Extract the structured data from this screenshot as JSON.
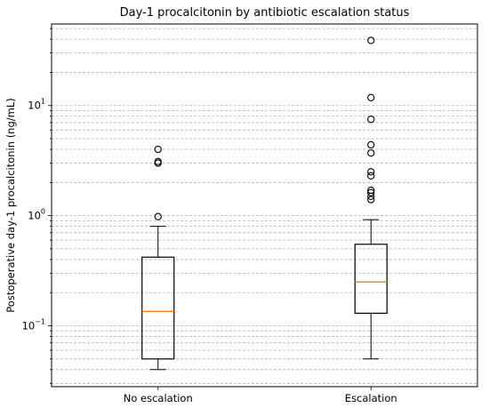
{
  "chart_data": {
    "type": "box",
    "title": "Day-1 procalcitonin by antibiotic escalation status",
    "xlabel": "",
    "ylabel": "Postoperative day-1 procalcitonin (ng/mL)",
    "yscale": "log",
    "ylim": [
      0.028,
      55
    ],
    "grid": "y-major-and-minor-dashed",
    "categories": [
      "No escalation",
      "Escalation"
    ],
    "y_ticks": [
      {
        "base": "10",
        "exp": "−1",
        "value": 0.1
      },
      {
        "base": "10",
        "exp": "0",
        "value": 1
      },
      {
        "base": "10",
        "exp": "1",
        "value": 10
      }
    ],
    "boxes": [
      {
        "name": "No escalation",
        "whisker_low": 0.04,
        "q1": 0.05,
        "median": 0.135,
        "q3": 0.42,
        "whisker_high": 0.8,
        "outliers": [
          0.98,
          3.0,
          3.1,
          4.0
        ]
      },
      {
        "name": "Escalation",
        "whisker_low": 0.05,
        "q1": 0.13,
        "median": 0.25,
        "q3": 0.55,
        "whisker_high": 0.92,
        "outliers": [
          1.4,
          1.5,
          1.62,
          1.7,
          2.3,
          2.5,
          3.7,
          4.4,
          7.5,
          11.8,
          39
        ]
      }
    ],
    "colors": {
      "box": "#000000",
      "median": "#ff7f0e",
      "grid": "#b0b0b0"
    }
  }
}
